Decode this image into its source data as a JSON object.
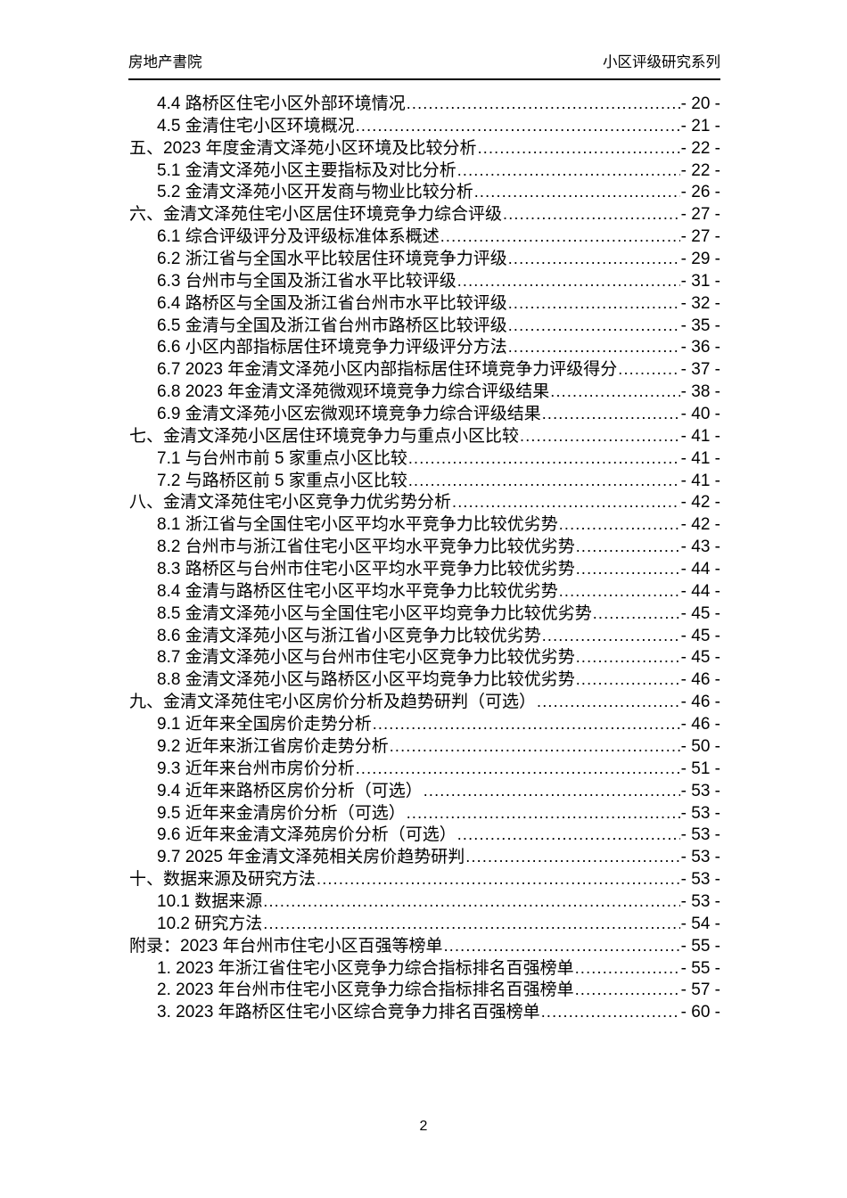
{
  "header": {
    "left": "房地产書院",
    "right": "小区评级研究系列"
  },
  "toc": {
    "entries": [
      {
        "level": 1,
        "label": "4.4 路桥区住宅小区外部环境情况",
        "page": "- 20 -"
      },
      {
        "level": 1,
        "label": "4.5 金清住宅小区环境概况",
        "page": "- 21 -"
      },
      {
        "level": 0,
        "label": "五、2023 年度金清文泽苑小区环境及比较分析",
        "page": "- 22 -"
      },
      {
        "level": 1,
        "label": "5.1 金清文泽苑小区主要指标及对比分析",
        "page": "- 22 -"
      },
      {
        "level": 1,
        "label": "5.2 金清文泽苑小区开发商与物业比较分析",
        "page": "- 26 -"
      },
      {
        "level": 0,
        "label": "六、金清文泽苑住宅小区居住环境竞争力综合评级",
        "page": "- 27 -"
      },
      {
        "level": 1,
        "label": "6.1 综合评级评分及评级标准体系概述",
        "page": "- 27 -"
      },
      {
        "level": 1,
        "label": "6.2 浙江省与全国水平比较居住环境竞争力评级",
        "page": "- 29 -"
      },
      {
        "level": 1,
        "label": "6.3 台州市与全国及浙江省水平比较评级",
        "page": "- 31 -"
      },
      {
        "level": 1,
        "label": "6.4 路桥区与全国及浙江省台州市水平比较评级",
        "page": "- 32 -"
      },
      {
        "level": 1,
        "label": "6.5 金清与全国及浙江省台州市路桥区比较评级",
        "page": "- 35 -"
      },
      {
        "level": 1,
        "label": "6.6 小区内部指标居住环境竞争力评级评分方法",
        "page": "- 36 -"
      },
      {
        "level": 1,
        "label": "6.7 2023 年金清文泽苑小区内部指标居住环境竞争力评级得分",
        "page": "- 37 -"
      },
      {
        "level": 1,
        "label": "6.8 2023 年金清文泽苑微观环境竞争力综合评级结果",
        "page": "- 38 -"
      },
      {
        "level": 1,
        "label": "6.9 金清文泽苑小区宏微观环境竞争力综合评级结果",
        "page": "- 40 -"
      },
      {
        "level": 0,
        "label": "七、金清文泽苑小区居住环境竞争力与重点小区比较",
        "page": "- 41 -"
      },
      {
        "level": 1,
        "label": "7.1 与台州市前 5 家重点小区比较",
        "page": "- 41 -"
      },
      {
        "level": 1,
        "label": "7.2 与路桥区前 5 家重点小区比较",
        "page": "- 41 -"
      },
      {
        "level": 0,
        "label": "八、金清文泽苑住宅小区竞争力优劣势分析",
        "page": "- 42 -"
      },
      {
        "level": 1,
        "label": "8.1 浙江省与全国住宅小区平均水平竞争力比较优劣势",
        "page": "- 42 -"
      },
      {
        "level": 1,
        "label": "8.2 台州市与浙江省住宅小区平均水平竞争力比较优劣势",
        "page": "- 43 -"
      },
      {
        "level": 1,
        "label": "8.3 路桥区与台州市住宅小区平均水平竞争力比较优劣势",
        "page": "- 44 -"
      },
      {
        "level": 1,
        "label": "8.4 金清与路桥区住宅小区平均水平竞争力比较优劣势",
        "page": "- 44 -"
      },
      {
        "level": 1,
        "label": "8.5 金清文泽苑小区与全国住宅小区平均竞争力比较优劣势",
        "page": "- 45 -"
      },
      {
        "level": 1,
        "label": "8.6 金清文泽苑小区与浙江省小区竞争力比较优劣势",
        "page": "- 45 -"
      },
      {
        "level": 1,
        "label": "8.7 金清文泽苑小区与台州市住宅小区竞争力比较优劣势",
        "page": "- 45 -"
      },
      {
        "level": 1,
        "label": "8.8 金清文泽苑小区与路桥区小区平均竞争力比较优劣势",
        "page": "- 46 -"
      },
      {
        "level": 0,
        "label": "九、金清文泽苑住宅小区房价分析及趋势研判（可选）",
        "page": "- 46 -"
      },
      {
        "level": 1,
        "label": "9.1 近年来全国房价走势分析",
        "page": "- 46 -"
      },
      {
        "level": 1,
        "label": "9.2 近年来浙江省房价走势分析",
        "page": "- 50 -"
      },
      {
        "level": 1,
        "label": "9.3 近年来台州市房价分析",
        "page": "- 51 -"
      },
      {
        "level": 1,
        "label": "9.4 近年来路桥区房价分析（可选）",
        "page": "- 53 -"
      },
      {
        "level": 1,
        "label": "9.5 近年来金清房价分析（可选）",
        "page": "- 53 -"
      },
      {
        "level": 1,
        "label": "9.6 近年来金清文泽苑房价分析（可选）",
        "page": "- 53 -"
      },
      {
        "level": 1,
        "label": "9.7 2025 年金清文泽苑相关房价趋势研判",
        "page": "- 53 -"
      },
      {
        "level": 0,
        "label": "十、数据来源及研究方法",
        "page": "- 53 -"
      },
      {
        "level": 1,
        "label": "10.1 数据来源",
        "page": "- 53 -"
      },
      {
        "level": 1,
        "label": "10.2 研究方法",
        "page": "- 54 -"
      },
      {
        "level": 0,
        "label": "附录：2023 年台州市住宅小区百强等榜单",
        "page": "- 55 -"
      },
      {
        "level": 1,
        "label": "1. 2023 年浙江省住宅小区竞争力综合指标排名百强榜单",
        "page": "- 55 -"
      },
      {
        "level": 1,
        "label": "2. 2023 年台州市住宅小区竞争力综合指标排名百强榜单",
        "page": "- 57 -"
      },
      {
        "level": 1,
        "label": "3. 2023 年路桥区住宅小区综合竞争力排名百强榜单",
        "page": "- 60 -"
      }
    ]
  },
  "footer": {
    "page_number": "2"
  }
}
